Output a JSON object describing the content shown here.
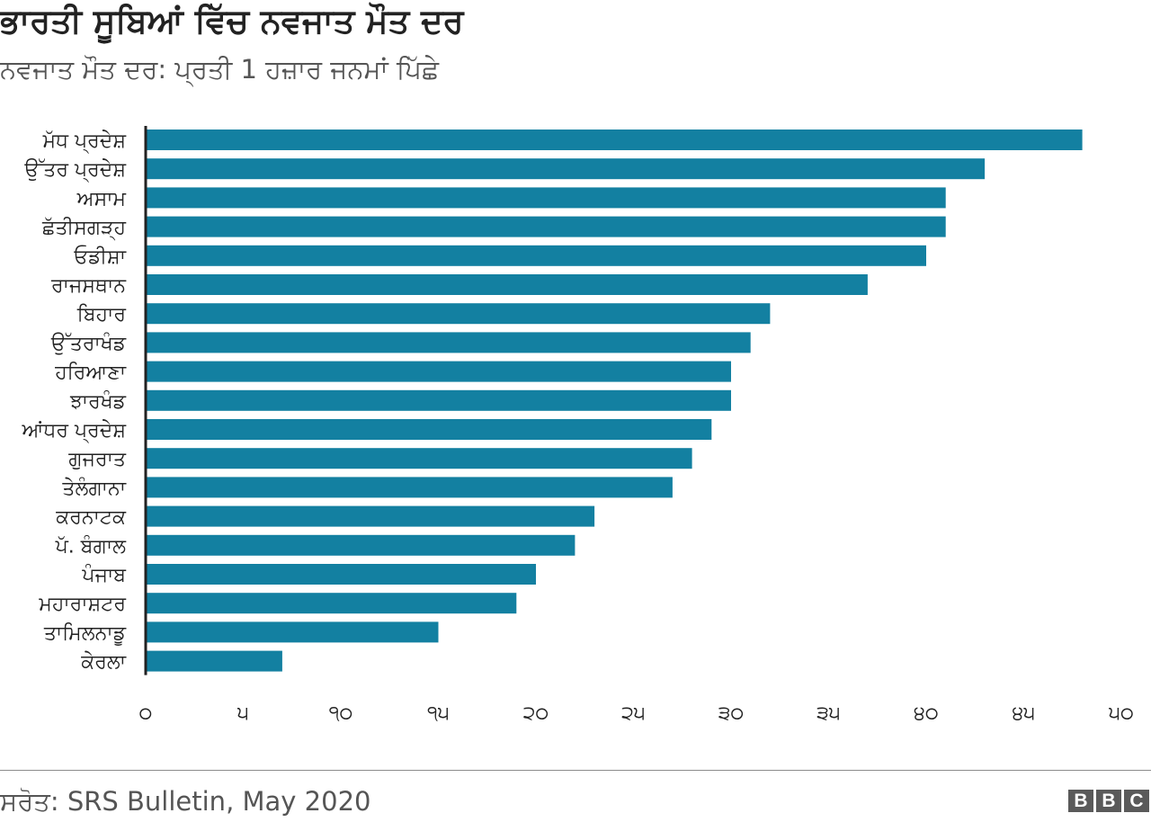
{
  "header": {
    "title": "ਭਾਰਤੀ ਸੂਬਿਆਂ ਵਿੱਚ ਨਵਜਾਤ ਮੌਤ ਦਰ",
    "subtitle": "ਨਵਜਾਤ ਮੌਤ ਦਰ: ਪ੍ਰਤੀ 1 ਹਜ਼ਾਰ ਜਨਮਾਂ ਪਿੱਛੇ"
  },
  "chart_data": {
    "type": "bar",
    "orientation": "horizontal",
    "title": "ਭਾਰਤੀ ਸੂਬਿਆਂ ਵਿੱਚ ਨਵਜਾਤ ਮੌਤ ਦਰ",
    "subtitle": "ਨਵਜਾਤ ਮੌਤ ਦਰ: ਪ੍ਰਤੀ 1 ਹਜ਼ਾਰ ਜਨਮਾਂ ਪਿੱਛੇ",
    "categories": [
      "ਮੱਧ ਪ੍ਰਦੇਸ਼",
      "ਉੱਤਰ ਪ੍ਰਦੇਸ਼",
      "ਅਸਾਮ",
      "ਛੱਤੀਸਗੜ੍ਹ",
      "ਓਡੀਸ਼ਾ",
      "ਰਾਜਸਥਾਨ",
      "ਬਿਹਾਰ",
      "ਉੱਤਰਾਖੰਡ",
      "ਹਰਿਆਣਾ",
      "ਝਾਰਖੰਡ",
      "ਆਂਧਰ ਪ੍ਰਦੇਸ਼",
      "ਗੁਜਰਾਤ",
      "ਤੇਲੰਗਾਨਾ",
      "ਕਰਨਾਟਕ",
      "ਪੱ. ਬੰਗਾਲ",
      "ਪੰਜਾਬ",
      "ਮਹਾਰਾਸ਼ਟਰ",
      "ਤਾਮਿਲਨਾਡੂ",
      "ਕੇਰਲਾ"
    ],
    "values": [
      48,
      43,
      41,
      41,
      40,
      37,
      32,
      31,
      30,
      30,
      29,
      28,
      27,
      23,
      22,
      20,
      19,
      15,
      7
    ],
    "xlim": [
      0,
      50
    ],
    "ticks": [
      0,
      5,
      10,
      15,
      20,
      25,
      30,
      35,
      40,
      45,
      50
    ],
    "tick_labels": [
      "੦",
      "੫",
      "੧੦",
      "੧੫",
      "੨੦",
      "੨੫",
      "੩੦",
      "੩੫",
      "੪੦",
      "੪੫",
      "੫੦"
    ],
    "xlabel": "",
    "ylabel": "",
    "grid": false,
    "bar_color": "#1380A1"
  },
  "footer": {
    "source": "ਸਰੋਤ: SRS Bulletin, May 2020",
    "logo_letters": [
      "B",
      "B",
      "C"
    ]
  }
}
